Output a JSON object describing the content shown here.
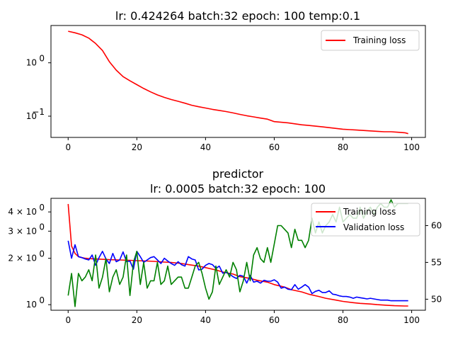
{
  "chart_data": [
    {
      "type": "line",
      "title": "lr: 0.424264 batch:32 epoch: 100 temp:0.1",
      "xlabel": "",
      "ylabel": "",
      "xlim": [
        -5,
        104
      ],
      "ylim": [
        0.04,
        5.0
      ],
      "yscale": "log",
      "x_ticks": [
        "0",
        "20",
        "40",
        "60",
        "80",
        "100"
      ],
      "y_ticks": [
        {
          "base": "10",
          "exp": "0",
          "value": 1.0
        },
        {
          "base": "10",
          "exp": "−1",
          "value": 0.1
        }
      ],
      "legend": "upper right",
      "grid": false,
      "series": [
        {
          "name": "Training loss",
          "color": "#ff0000",
          "x": [
            0,
            2,
            4,
            6,
            8,
            10,
            12,
            14,
            16,
            18,
            20,
            22,
            24,
            26,
            28,
            30,
            32,
            34,
            36,
            38,
            40,
            42,
            44,
            46,
            48,
            50,
            52,
            54,
            56,
            58,
            60,
            62,
            64,
            66,
            68,
            70,
            72,
            74,
            76,
            78,
            80,
            82,
            84,
            86,
            88,
            90,
            92,
            94,
            96,
            98,
            99
          ],
          "y": [
            3.9,
            3.65,
            3.35,
            2.9,
            2.3,
            1.7,
            1.05,
            0.73,
            0.55,
            0.46,
            0.39,
            0.33,
            0.285,
            0.25,
            0.225,
            0.205,
            0.19,
            0.175,
            0.16,
            0.15,
            0.142,
            0.134,
            0.128,
            0.122,
            0.115,
            0.108,
            0.102,
            0.097,
            0.092,
            0.088,
            0.079,
            0.077,
            0.075,
            0.072,
            0.069,
            0.067,
            0.065,
            0.063,
            0.061,
            0.059,
            0.057,
            0.056,
            0.055,
            0.054,
            0.053,
            0.052,
            0.051,
            0.051,
            0.05,
            0.049,
            0.047
          ]
        }
      ]
    },
    {
      "type": "line",
      "title": "predictor\nlr: 0.0005 batch:32 epoch: 100",
      "title_lines": [
        "predictor",
        "lr: 0.0005 batch:32 epoch: 100"
      ],
      "xlabel": "",
      "ylabel": "",
      "xlim": [
        -5,
        104
      ],
      "ylim": [
        0.92,
        4.9
      ],
      "yscale": "log",
      "y2lim": [
        48.5,
        63.7
      ],
      "x_ticks": [
        "0",
        "20",
        "40",
        "60",
        "80",
        "100"
      ],
      "y_ticks": [
        {
          "label": "4 × 10",
          "exp": "0",
          "value": 4.0
        },
        {
          "label": "3 × 10",
          "exp": "0",
          "value": 3.0
        },
        {
          "label": "2 × 10",
          "exp": "0",
          "value": 2.0
        },
        {
          "label": "10",
          "exp": "0",
          "value": 1.0
        }
      ],
      "y2_ticks": [
        "50",
        "55",
        "60"
      ],
      "legend": "upper right",
      "grid": false,
      "series": [
        {
          "name": "Training loss",
          "color": "#ff0000",
          "axis": "left",
          "x": [
            0,
            1,
            2,
            3,
            4,
            5,
            6,
            8,
            10,
            12,
            15,
            18,
            20,
            23,
            25,
            28,
            30,
            33,
            35,
            38,
            40,
            43,
            45,
            48,
            50,
            53,
            55,
            58,
            60,
            63,
            65,
            68,
            70,
            73,
            75,
            78,
            80,
            83,
            85,
            88,
            90,
            93,
            95,
            98,
            99
          ],
          "y": [
            4.5,
            2.4,
            2.15,
            2.05,
            2.02,
            2.0,
            1.99,
            1.98,
            1.97,
            1.96,
            1.95,
            1.94,
            1.93,
            1.92,
            1.91,
            1.89,
            1.88,
            1.85,
            1.82,
            1.78,
            1.74,
            1.68,
            1.63,
            1.58,
            1.52,
            1.48,
            1.44,
            1.4,
            1.35,
            1.3,
            1.25,
            1.21,
            1.17,
            1.13,
            1.1,
            1.07,
            1.05,
            1.03,
            1.02,
            1.01,
            1.0,
            0.99,
            0.985,
            0.98,
            0.98
          ]
        },
        {
          "name": "Validation loss",
          "color": "#0000ff",
          "axis": "left",
          "x": [
            0,
            1,
            2,
            3,
            4,
            5,
            6,
            7,
            8,
            9,
            10,
            11,
            12,
            13,
            14,
            15,
            16,
            17,
            18,
            19,
            20,
            21,
            22,
            23,
            24,
            25,
            26,
            27,
            28,
            29,
            30,
            31,
            32,
            33,
            34,
            35,
            36,
            37,
            38,
            39,
            40,
            41,
            42,
            43,
            44,
            45,
            46,
            47,
            48,
            49,
            50,
            51,
            52,
            53,
            54,
            55,
            56,
            57,
            58,
            59,
            60,
            61,
            62,
            63,
            64,
            65,
            66,
            67,
            68,
            69,
            70,
            71,
            72,
            73,
            74,
            75,
            76,
            77,
            78,
            79,
            80,
            81,
            82,
            83,
            84,
            85,
            86,
            87,
            88,
            89,
            90,
            91,
            92,
            93,
            94,
            95,
            96,
            97,
            98,
            99
          ],
          "y": [
            2.6,
            2.0,
            2.45,
            2.05,
            2.02,
            1.98,
            1.95,
            2.1,
            1.8,
            2.02,
            2.22,
            1.98,
            1.85,
            2.15,
            1.9,
            1.95,
            2.2,
            1.9,
            1.92,
            1.7,
            2.22,
            2.05,
            1.88,
            1.95,
            2.02,
            2.05,
            1.95,
            1.85,
            2.0,
            1.92,
            1.85,
            1.8,
            1.9,
            1.82,
            1.78,
            2.05,
            1.98,
            1.95,
            1.68,
            1.7,
            1.8,
            1.85,
            1.82,
            1.72,
            1.78,
            1.6,
            1.62,
            1.58,
            1.52,
            1.48,
            1.55,
            1.53,
            1.38,
            1.55,
            1.4,
            1.42,
            1.38,
            1.44,
            1.42,
            1.42,
            1.45,
            1.4,
            1.28,
            1.3,
            1.26,
            1.25,
            1.35,
            1.26,
            1.3,
            1.35,
            1.3,
            1.18,
            1.22,
            1.24,
            1.2,
            1.2,
            1.23,
            1.17,
            1.16,
            1.14,
            1.13,
            1.13,
            1.12,
            1.1,
            1.12,
            1.11,
            1.1,
            1.09,
            1.1,
            1.09,
            1.08,
            1.07,
            1.07,
            1.07,
            1.06,
            1.06,
            1.06,
            1.06,
            1.06,
            1.06
          ]
        },
        {
          "name": "",
          "color": "#008000",
          "axis": "right",
          "x": [
            0,
            1,
            2,
            3,
            4,
            5,
            6,
            7,
            8,
            9,
            10,
            11,
            12,
            13,
            14,
            15,
            16,
            17,
            18,
            19,
            20,
            21,
            22,
            23,
            24,
            25,
            26,
            27,
            28,
            29,
            30,
            31,
            32,
            33,
            34,
            35,
            36,
            37,
            38,
            39,
            40,
            41,
            42,
            43,
            44,
            45,
            46,
            47,
            48,
            49,
            50,
            51,
            52,
            53,
            54,
            55,
            56,
            57,
            58,
            59,
            60,
            61,
            62,
            63,
            64,
            65,
            66,
            67,
            68,
            69,
            70,
            71,
            72,
            73,
            74,
            75,
            76,
            77,
            78,
            79,
            80,
            81,
            82,
            83,
            84,
            85,
            86,
            87,
            88,
            89,
            90,
            91,
            92,
            93,
            94,
            95,
            96,
            97,
            98,
            99
          ],
          "y": [
            50.5,
            53.5,
            49,
            53.5,
            52.5,
            53,
            54,
            52.5,
            56,
            51.5,
            53,
            55.5,
            51,
            53,
            54,
            52,
            53,
            56,
            50.5,
            55,
            56.5,
            52,
            55,
            51.5,
            52.5,
            52.5,
            55,
            52,
            52.5,
            54.5,
            52,
            52.5,
            53,
            53,
            51.5,
            51.5,
            53,
            54.5,
            55,
            53.5,
            51.5,
            50,
            51,
            54.5,
            52,
            53,
            54,
            53,
            55,
            54,
            51,
            52.5,
            55,
            52.5,
            56,
            57,
            55.5,
            55,
            57,
            55,
            57.5,
            60,
            60,
            59.5,
            59,
            57,
            59.5,
            58,
            58,
            57,
            58,
            61,
            59,
            60.5,
            59,
            60,
            60.5,
            61.5,
            60.5,
            62.5,
            60.5,
            61,
            61.5,
            61,
            61,
            62.5,
            61,
            62,
            62.5,
            61.5,
            62.5,
            63,
            62.5,
            62.5,
            63.5,
            62.5,
            63,
            63,
            63,
            63
          ]
        }
      ]
    }
  ]
}
